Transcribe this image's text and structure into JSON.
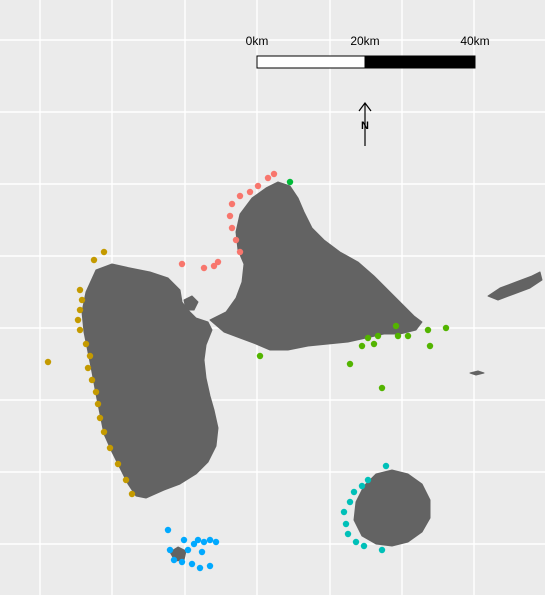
{
  "map": {
    "background_color": "#ebebeb",
    "grid_color": "#ffffff",
    "land_color": "#636363"
  },
  "scale_bar": {
    "labels": [
      "0km",
      "20km",
      "40km"
    ],
    "segment_colors": [
      "#ffffff",
      "#000000"
    ]
  },
  "north_arrow": {
    "label": "N"
  },
  "point_groups": [
    {
      "color": "#f8766d"
    },
    {
      "color": "#00ba38"
    },
    {
      "color": "#c49a00"
    },
    {
      "color": "#53b400"
    },
    {
      "color": "#00c0b8"
    },
    {
      "color": "#00a9ff"
    }
  ]
}
